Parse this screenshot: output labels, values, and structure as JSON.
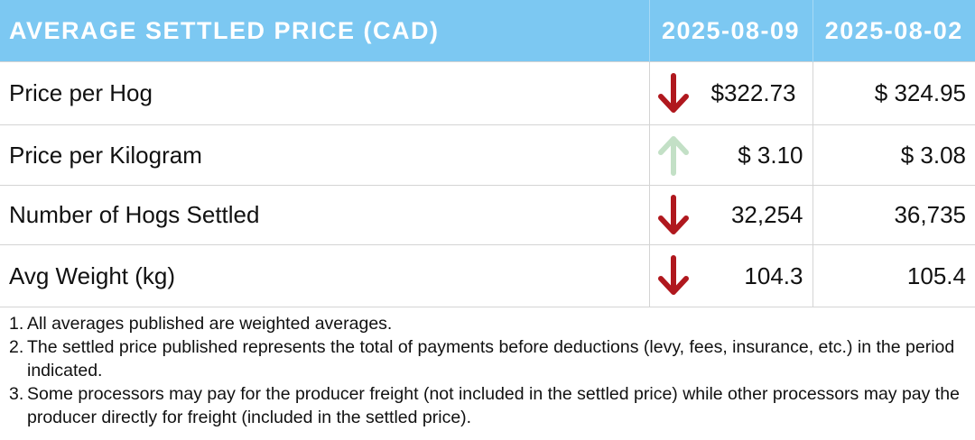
{
  "header": {
    "title": "AVERAGE SETTLED PRICE (CAD)",
    "col_current": "2025-08-09",
    "col_previous": "2025-08-02"
  },
  "rows": [
    {
      "label": "Price per Hog",
      "current": "$322.73",
      "previous": "$ 324.95",
      "trend": "down"
    },
    {
      "label": "Price per Kilogram",
      "current": "$ 3.10",
      "previous": "$ 3.08",
      "trend": "up"
    },
    {
      "label": "Number of Hogs Settled",
      "current": "32,254",
      "previous": "36,735",
      "trend": "down"
    },
    {
      "label": "Avg Weight (kg)",
      "current": "104.3",
      "previous": "105.4",
      "trend": "down"
    }
  ],
  "notes": [
    {
      "num": "1.",
      "text": "All averages published are weighted averages."
    },
    {
      "num": "2.",
      "text": "The settled price published represents the total of payments before deductions (levy, fees, insurance, etc.) in the period indicated."
    },
    {
      "num": "3.",
      "text": "Some processors may pay for the producer freight (not included in the settled price) while other processors may pay the producer directly for freight (included in the settled price)."
    }
  ],
  "colors": {
    "header_bg": "#7cc8f2",
    "arrow_down": "#b0181e",
    "arrow_up": "#c3e0c6"
  },
  "icons": {
    "down": "arrow-down-icon",
    "up": "arrow-up-icon"
  }
}
